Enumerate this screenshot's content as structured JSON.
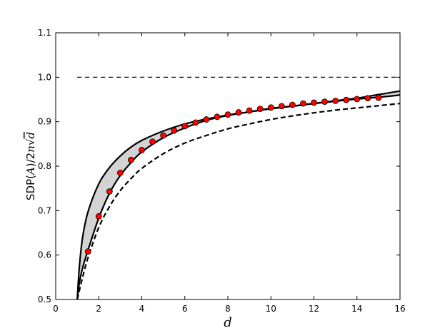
{
  "chart_data": {
    "type": "line",
    "title": "",
    "xlabel": "d",
    "ylabel": {
      "prefix": "SDP(",
      "var_a": "A",
      "middle": ")/2",
      "var_n": "n",
      "var_d": "d"
    },
    "xlim": [
      0,
      16
    ],
    "ylim": [
      0.5,
      1.1
    ],
    "xticks": [
      "0",
      "2",
      "4",
      "6",
      "8",
      "10",
      "12",
      "14",
      "16"
    ],
    "yticks": [
      "0.5",
      "0.6",
      "0.7",
      "0.8",
      "0.9",
      "1.0",
      "1.1"
    ],
    "grid": false,
    "legend": "none",
    "series": [
      {
        "style": "dashed",
        "color": "#000000",
        "x": [
          1,
          16
        ],
        "y": [
          1.0,
          1.0
        ]
      },
      {
        "style": "solid-upper",
        "color": "#000000",
        "x": [
          1,
          1.1,
          1.25,
          1.5,
          2,
          2.5,
          3,
          3.5,
          4,
          5,
          6,
          7,
          8,
          9,
          10,
          11,
          12,
          13,
          14,
          15,
          16
        ],
        "y": [
          0.5,
          0.574,
          0.64,
          0.697,
          0.76,
          0.797,
          0.823,
          0.843,
          0.858,
          0.879,
          0.895,
          0.906,
          0.915,
          0.922,
          0.929,
          0.935,
          0.941,
          0.947,
          0.953,
          0.961,
          0.969
        ]
      },
      {
        "style": "solid-lower",
        "color": "#000000",
        "x": [
          1,
          1.1,
          1.25,
          1.5,
          2,
          2.5,
          3,
          3.5,
          4,
          5,
          6,
          7,
          8,
          9,
          10,
          11,
          12,
          13,
          14,
          15,
          16
        ],
        "y": [
          0.5,
          0.538,
          0.571,
          0.611,
          0.683,
          0.739,
          0.779,
          0.808,
          0.832,
          0.864,
          0.886,
          0.903,
          0.914,
          0.922,
          0.93,
          0.935,
          0.941,
          0.946,
          0.951,
          0.955,
          0.96
        ]
      },
      {
        "style": "dashed-thick",
        "color": "#000000",
        "x": [
          1,
          1.25,
          1.5,
          2,
          2.5,
          3,
          3.5,
          4,
          5,
          6,
          7,
          8,
          9,
          10,
          11,
          12,
          13,
          14,
          15,
          16
        ],
        "y": [
          0.5,
          0.55,
          0.594,
          0.662,
          0.709,
          0.745,
          0.772,
          0.795,
          0.828,
          0.852,
          0.869,
          0.884,
          0.895,
          0.905,
          0.913,
          0.92,
          0.926,
          0.931,
          0.936,
          0.941
        ]
      },
      {
        "style": "markers",
        "color": "#ff0000",
        "x": [
          1.5,
          2,
          2.5,
          3,
          3.5,
          4,
          4.5,
          5,
          5.5,
          6,
          6.5,
          7,
          7.5,
          8,
          8.5,
          9,
          9.5,
          10,
          10.5,
          11,
          11.5,
          12,
          12.5,
          13,
          13.5,
          14,
          14.5,
          15
        ],
        "y": [
          0.608,
          0.687,
          0.743,
          0.785,
          0.814,
          0.836,
          0.855,
          0.869,
          0.88,
          0.89,
          0.898,
          0.905,
          0.911,
          0.916,
          0.921,
          0.925,
          0.929,
          0.932,
          0.935,
          0.938,
          0.941,
          0.943,
          0.945,
          0.947,
          0.949,
          0.951,
          0.953,
          0.954
        ]
      }
    ],
    "shaded_band": {
      "between": [
        "solid-upper",
        "solid-lower"
      ],
      "color": "#d3d3d3"
    }
  }
}
